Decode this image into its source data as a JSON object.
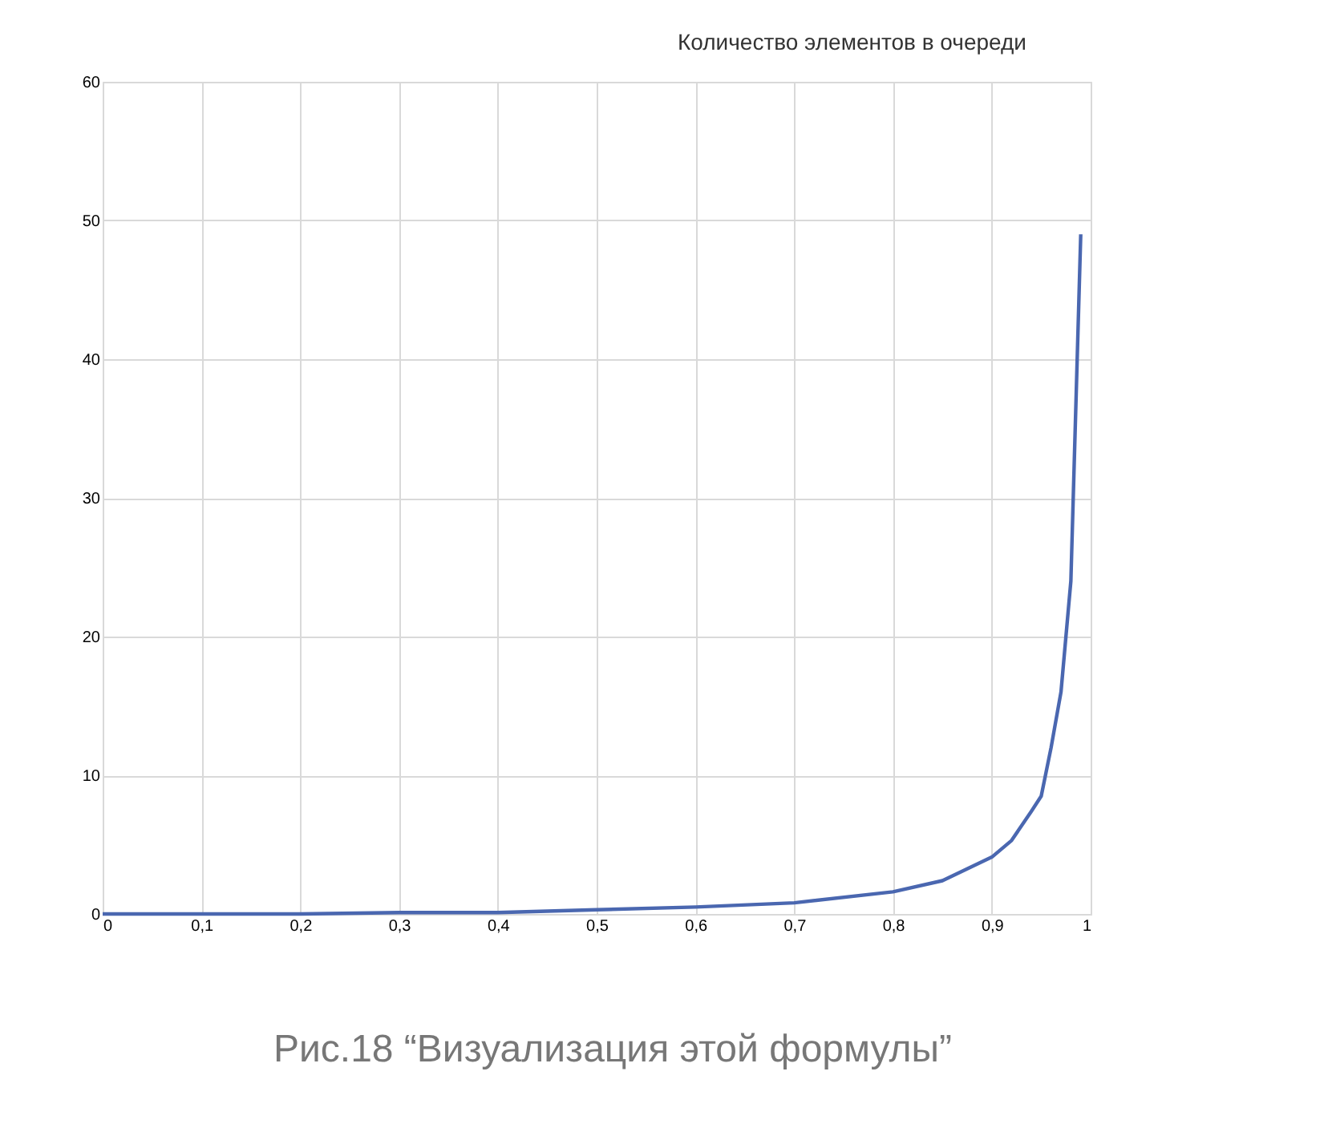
{
  "chart_data": {
    "type": "line",
    "title": "Количество элементов в очереди",
    "x": [
      0,
      0.1,
      0.2,
      0.3,
      0.4,
      0.5,
      0.6,
      0.7,
      0.8,
      0.85,
      0.9,
      0.92,
      0.94,
      0.95,
      0.96,
      0.97,
      0.98,
      0.99
    ],
    "series": [
      {
        "color": "#4a67b0",
        "values": [
          0,
          0,
          0,
          0.1,
          0.1,
          0.3,
          0.5,
          0.8,
          1.6,
          2.4,
          4.1,
          5.3,
          7.4,
          8.5,
          12,
          16,
          24,
          49
        ]
      }
    ],
    "xlim": [
      0,
      1
    ],
    "ylim": [
      0,
      60
    ],
    "xticks": [
      0,
      {
        "value": 0.1,
        "label": "0,1"
      },
      {
        "value": 0.2,
        "label": "0,2"
      },
      {
        "value": 0.3,
        "label": "0,3"
      },
      {
        "value": 0.4,
        "label": "0,4"
      },
      {
        "value": 0.5,
        "label": "0,5"
      },
      {
        "value": 0.6,
        "label": "0,6"
      },
      {
        "value": 0.7,
        "label": "0,7"
      },
      {
        "value": 0.8,
        "label": "0,8"
      },
      {
        "value": 0.9,
        "label": "0,9"
      },
      1
    ],
    "yticks": [
      0,
      10,
      20,
      30,
      40,
      50,
      60
    ],
    "grid": true,
    "marker": "none",
    "line_style": "solid",
    "annotations": [
      "Рис.18 “Визуализация этой формулы”"
    ]
  }
}
